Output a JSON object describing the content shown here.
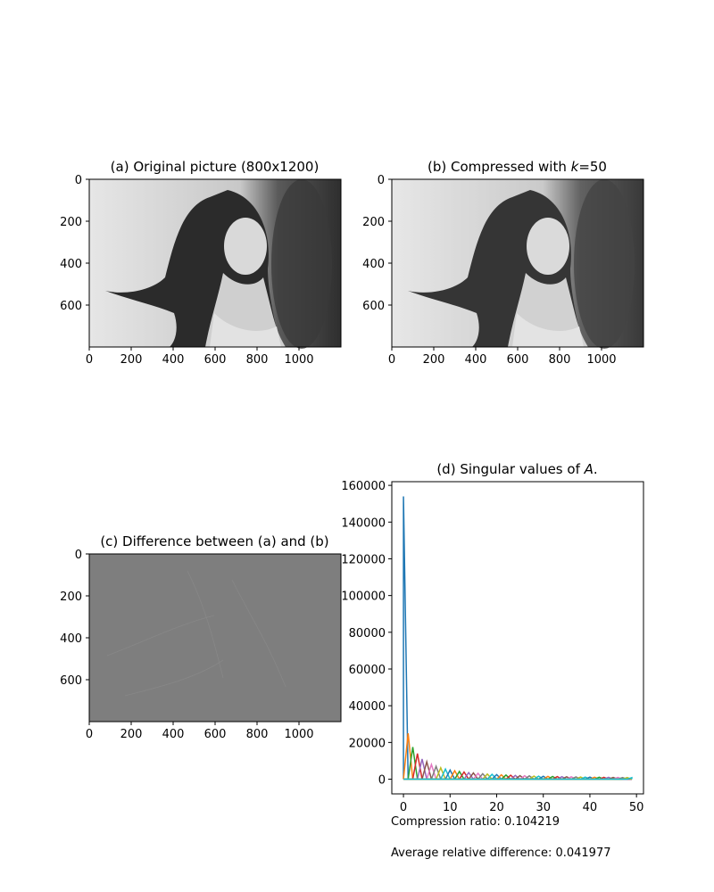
{
  "chart_data": [
    {
      "type": "image",
      "title": "(a) Original picture (800x1200)",
      "x_ticks": [
        0,
        200,
        400,
        600,
        800,
        1000
      ],
      "y_ticks": [
        0,
        200,
        400,
        600
      ],
      "xlim": [
        0,
        1200
      ],
      "ylim": [
        800,
        0
      ],
      "colormap": "gray"
    },
    {
      "type": "image",
      "title_prefix": "(b) Compressed with ",
      "title_var": "k",
      "title_suffix": "=50",
      "x_ticks": [
        0,
        200,
        400,
        600,
        800,
        1000
      ],
      "y_ticks": [
        0,
        200,
        400,
        600
      ],
      "xlim": [
        0,
        1200
      ],
      "ylim": [
        800,
        0
      ],
      "colormap": "gray"
    },
    {
      "type": "image",
      "title": "(c) Difference between (a) and (b)",
      "x_ticks": [
        0,
        200,
        400,
        600,
        800,
        1000
      ],
      "y_ticks": [
        0,
        200,
        400,
        600
      ],
      "xlim": [
        0,
        1200
      ],
      "ylim": [
        800,
        0
      ],
      "colormap": "gray"
    },
    {
      "type": "line",
      "title_prefix": "(d) Singular values of ",
      "title_var": "A",
      "title_suffix": ".",
      "x_ticks": [
        0,
        10,
        20,
        30,
        40,
        50
      ],
      "y_ticks": [
        0,
        20000,
        40000,
        60000,
        80000,
        100000,
        120000,
        140000,
        160000
      ],
      "xlim": [
        -2.5,
        51.5
      ],
      "ylim": [
        -8000,
        162000
      ],
      "grid": false,
      "singular_values": [
        154000,
        25000,
        17500,
        14000,
        11000,
        9500,
        8000,
        7000,
        6200,
        5500,
        5000,
        4600,
        4200,
        3900,
        3600,
        3400,
        3200,
        3000,
        2800,
        2650,
        2500,
        2380,
        2260,
        2150,
        2050,
        1950,
        1870,
        1790,
        1720,
        1650,
        1590,
        1530,
        1470,
        1420,
        1370,
        1320,
        1280,
        1240,
        1200,
        1160,
        1120,
        1090,
        1060,
        1030,
        1000,
        970,
        945,
        920,
        895,
        870
      ],
      "series_colors": [
        "#1f77b4",
        "#ff7f0e",
        "#2ca02c",
        "#d62728",
        "#9467bd",
        "#8c564b",
        "#e377c2",
        "#7f7f7f",
        "#bcbd22",
        "#17becf"
      ]
    }
  ],
  "notes": {
    "compression_ratio": "Compression ratio: 0.104219",
    "average_relative_difference": "Average relative difference: 0.041977"
  }
}
